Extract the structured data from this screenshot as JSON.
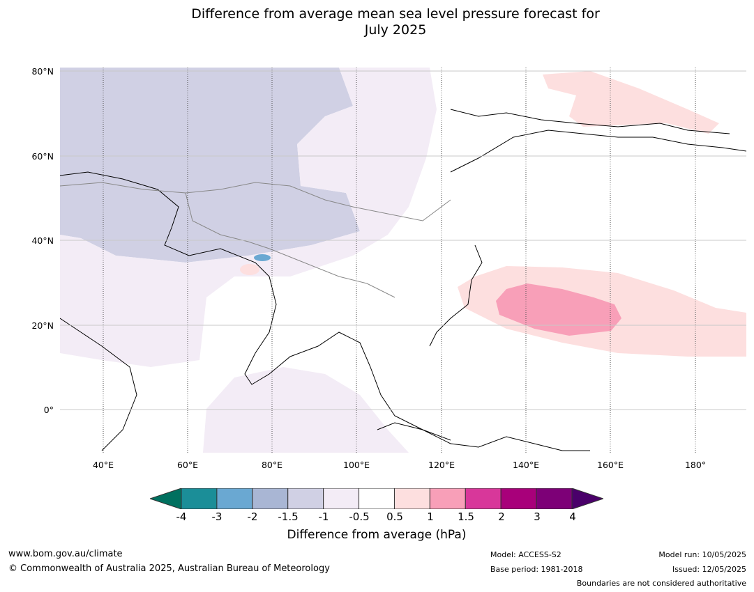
{
  "title": {
    "line1": "Difference from average mean sea level pressure forecast for",
    "line2": "July 2025"
  },
  "map": {
    "lat_labels": [
      "80°N",
      "60°N",
      "40°N",
      "20°N",
      "0°"
    ],
    "lon_labels": [
      "40°E",
      "60°E",
      "80°E",
      "100°E",
      "120°E",
      "140°E",
      "160°E",
      "180°"
    ],
    "extent": {
      "lon_min": 30,
      "lon_max": 192,
      "lat_min": -10,
      "lat_max": 81
    }
  },
  "colorbar": {
    "tick_labels": [
      "-4",
      "-3",
      "-2",
      "-1.5",
      "-1",
      "-0.5",
      "0.5",
      "1",
      "1.5",
      "2",
      "3",
      "4"
    ],
    "colors": {
      "extend_low": "#00705f",
      "bins": [
        "#1b8e98",
        "#6aa8d2",
        "#a9b6d4",
        "#d0d0e4",
        "#f3ecf6",
        "#ffffff",
        "#fddfdf",
        "#f89fb8",
        "#d8379a",
        "#a8007a",
        "#7d0077"
      ],
      "extend_high": "#4a006a"
    },
    "label": "Difference from average (hPa)"
  },
  "footer": {
    "url": "www.bom.gov.au/climate",
    "copyright": "© Commonwealth of Australia 2025, Australian Bureau of Meteorology",
    "model": "Model: ACCESS-S2",
    "base_period": "Base period: 1981-2018",
    "model_run": "Model run: 10/05/2025",
    "issued": "Issued: 12/05/2025",
    "disclaimer": "Boundaries are not considered authoritative"
  }
}
